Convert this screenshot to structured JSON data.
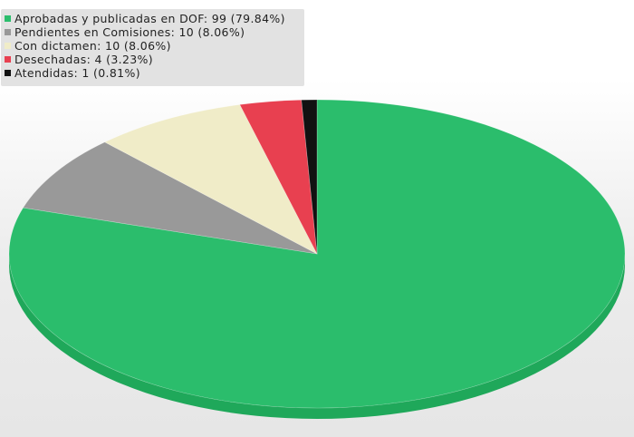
{
  "chart_data": {
    "type": "pie",
    "categories": [
      "Aprobadas y publicadas en DOF",
      "Pendientes en Comisiones",
      "Con dictamen",
      "Desechadas",
      "Atendidas"
    ],
    "values": [
      99,
      10,
      10,
      4,
      1
    ],
    "percentages": [
      "79.84%",
      "8.06%",
      "8.06%",
      "3.23%",
      "0.81%"
    ],
    "colors": [
      "#2bbd6c",
      "#999999",
      "#f0ecc8",
      "#e84050",
      "#111111"
    ],
    "side_colors": [
      "#1fa85a",
      "#7f7f7f",
      "#d6d2ad",
      "#c22f3d",
      "#000000"
    ],
    "legend_position": "top-left",
    "legend": [
      {
        "text": "Aprobadas y publicadas en DOF: 99  (79.84%)",
        "color": "#2bbd6c"
      },
      {
        "text": "Pendientes en Comisiones: 10  (8.06%)",
        "color": "#999999"
      },
      {
        "text": "Con dictamen: 10  (8.06%)",
        "color": "#f0ecc8"
      },
      {
        "text": "Desechadas: 4  (3.23%)",
        "color": "#e84050"
      },
      {
        "text": "Atendidas: 1  (0.81%)",
        "color": "#111111"
      }
    ]
  }
}
